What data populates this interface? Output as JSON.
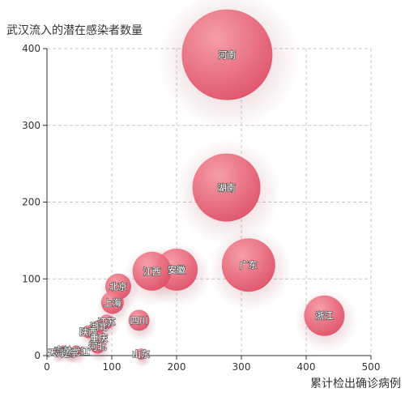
{
  "chart_data": {
    "type": "scatter",
    "title": "",
    "ylabel": "武汉流入的潜在感染者数量",
    "xlabel": "累计检出确诊病例",
    "xlim": [
      0,
      500
    ],
    "ylim": [
      0,
      400
    ],
    "xticks": [
      0,
      100,
      200,
      300,
      400,
      500
    ],
    "yticks": [
      0,
      100,
      200,
      300,
      400
    ],
    "grid": true,
    "colors": {
      "bubble": "#e0546a",
      "bubble_light": "#f38b97",
      "axis": "#333333",
      "grid": "#c8c8c8"
    },
    "points": [
      {
        "name": "河南",
        "x": 278,
        "y": 392,
        "size": 56
      },
      {
        "name": "湖南",
        "x": 277,
        "y": 219,
        "size": 42
      },
      {
        "name": "广东",
        "x": 311,
        "y": 118,
        "size": 33
      },
      {
        "name": "安徽",
        "x": 200,
        "y": 112,
        "size": 26
      },
      {
        "name": "江西",
        "x": 162,
        "y": 110,
        "size": 24
      },
      {
        "name": "浙江",
        "x": 428,
        "y": 52,
        "size": 25
      },
      {
        "name": "北京",
        "x": 110,
        "y": 90,
        "size": 16
      },
      {
        "name": "上海",
        "x": 101,
        "y": 69,
        "size": 14
      },
      {
        "name": "四川",
        "x": 142,
        "y": 46,
        "size": 13
      },
      {
        "name": "江苏",
        "x": 92,
        "y": 44,
        "size": 9
      },
      {
        "name": "湖北",
        "x": 80,
        "y": 38,
        "size": 8
      },
      {
        "name": "陕西",
        "x": 64,
        "y": 31,
        "size": 8
      },
      {
        "name": "重庆",
        "x": 80,
        "y": 23,
        "size": 9
      },
      {
        "name": "河北",
        "x": 78,
        "y": 12,
        "size": 9
      },
      {
        "name": "山东",
        "x": 145,
        "y": 2,
        "size": 7
      },
      {
        "name": "黑龙江",
        "x": 45,
        "y": 6,
        "size": 7
      },
      {
        "name": "吉林",
        "x": 25,
        "y": 7,
        "size": 6
      },
      {
        "name": "天津",
        "x": 15,
        "y": 4,
        "size": 5
      },
      {
        "name": "辽宁",
        "x": 35,
        "y": 3,
        "size": 5
      }
    ]
  }
}
